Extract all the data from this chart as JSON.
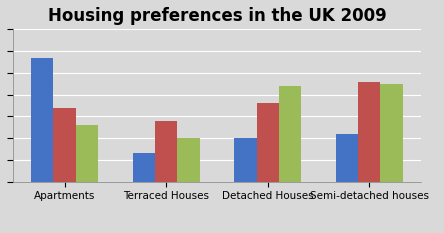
{
  "title": "Housing preferences in the UK 2009",
  "categories": [
    "Apartments",
    "Terraced Houses",
    "Detached Houses",
    "Semi-detached houses"
  ],
  "series": {
    "Liverpool": [
      57,
      13,
      20,
      22
    ],
    "London": [
      34,
      28,
      36,
      46
    ],
    "Manchester": [
      26,
      20,
      44,
      45
    ]
  },
  "colors": {
    "Liverpool": "#4472C4",
    "London": "#C0504D",
    "Manchester": "#9BBB59"
  },
  "ylim": [
    0,
    70
  ],
  "bar_width": 0.22,
  "background_color": "#D9D9D9",
  "plot_bg_color": "#D9D9D9",
  "title_fontsize": 12,
  "tick_fontsize": 7.5,
  "legend_fontsize": 8
}
